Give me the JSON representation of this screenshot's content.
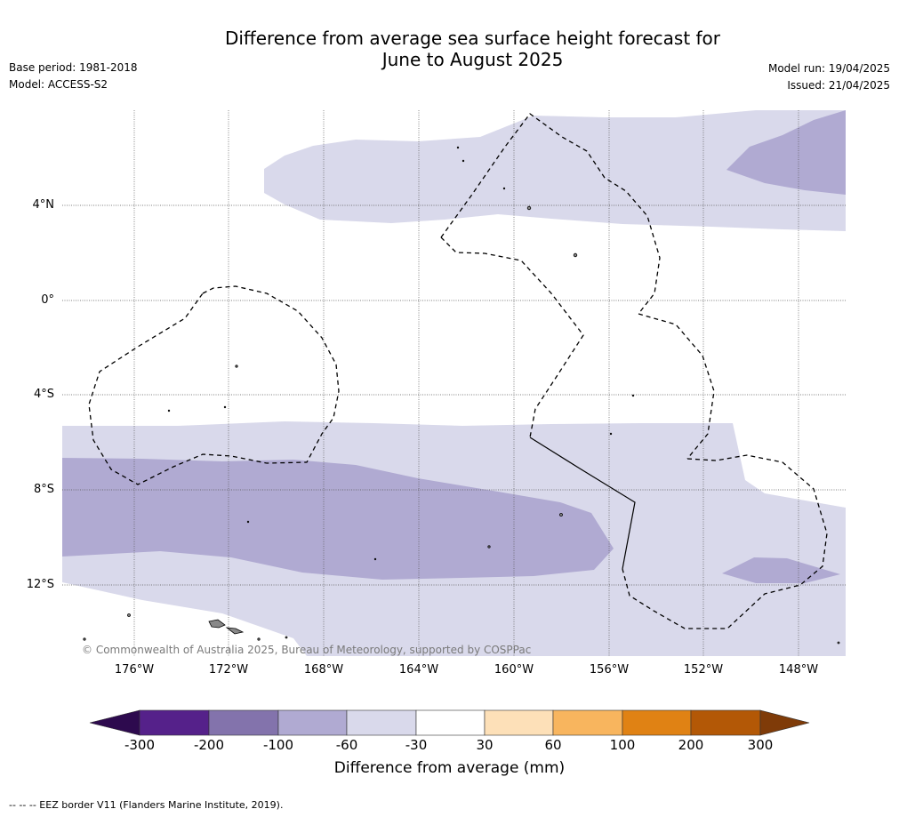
{
  "title_line1": "Difference from average sea surface height forecast for",
  "title_line2": "June to August 2025",
  "base_period": "Base period: 1981-2018",
  "model": "Model: ACCESS-S2",
  "model_run": "Model run: 19/04/2025",
  "issued": "Issued: 21/04/2025",
  "lat_labels": [
    "4°N",
    "0°",
    "4°S",
    "8°S",
    "12°S"
  ],
  "lon_labels": [
    "176°W",
    "172°W",
    "168°W",
    "164°W",
    "160°W",
    "156°W",
    "152°W",
    "148°W"
  ],
  "copyright": "© Commonwealth of Australia 2025, Bureau of Meteorology, supported by COSPPac",
  "colorbar": {
    "title": "Difference from average (mm)",
    "ticks": [
      "-300",
      "-200",
      "-100",
      "-60",
      "-30",
      "30",
      "60",
      "100",
      "200",
      "300"
    ],
    "colors": [
      "#2d0a4e",
      "#55218a",
      "#8373ac",
      "#b0aad2",
      "#d9d9eb",
      "#ffffff",
      "#fde0b8",
      "#f8b55e",
      "#e08214",
      "#b35806",
      "#7f3b08"
    ]
  },
  "footnote": "--  --  -- EEZ border V11 (Flanders Marine Institute, 2019)."
}
